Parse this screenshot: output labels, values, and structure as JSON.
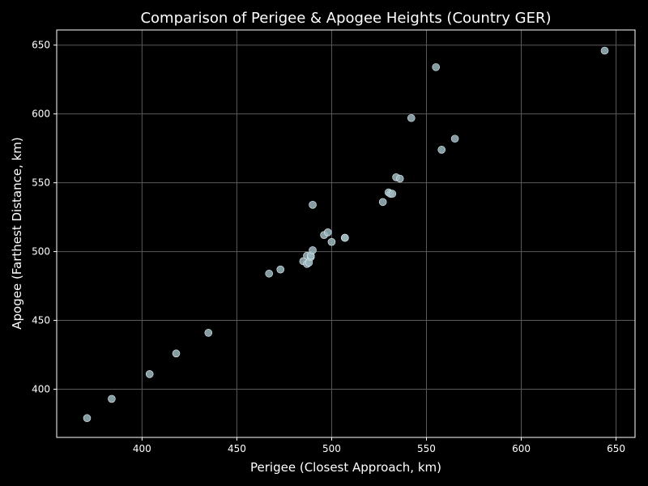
{
  "chart_data": {
    "type": "scatter",
    "title": "Comparison of Perigee & Apogee Heights (Country GER)",
    "xlabel": "Perigee (Closest Approach, km)",
    "ylabel": "Apogee (Farthest Distance, km)",
    "xlim": [
      355,
      660
    ],
    "ylim": [
      365,
      661
    ],
    "x_ticks": [
      400,
      450,
      500,
      550,
      600,
      650
    ],
    "y_ticks": [
      400,
      450,
      500,
      550,
      600,
      650
    ],
    "grid": true,
    "points": [
      {
        "x": 371,
        "y": 379
      },
      {
        "x": 384,
        "y": 393
      },
      {
        "x": 404,
        "y": 411
      },
      {
        "x": 418,
        "y": 426
      },
      {
        "x": 435,
        "y": 441
      },
      {
        "x": 467,
        "y": 484
      },
      {
        "x": 473,
        "y": 487
      },
      {
        "x": 485,
        "y": 493
      },
      {
        "x": 487,
        "y": 491
      },
      {
        "x": 487,
        "y": 497
      },
      {
        "x": 488,
        "y": 492
      },
      {
        "x": 489,
        "y": 496
      },
      {
        "x": 489,
        "y": 497
      },
      {
        "x": 490,
        "y": 501
      },
      {
        "x": 490,
        "y": 534
      },
      {
        "x": 496,
        "y": 512
      },
      {
        "x": 498,
        "y": 514
      },
      {
        "x": 500,
        "y": 507
      },
      {
        "x": 507,
        "y": 510
      },
      {
        "x": 507,
        "y": 510
      },
      {
        "x": 527,
        "y": 536
      },
      {
        "x": 530,
        "y": 543
      },
      {
        "x": 531,
        "y": 542
      },
      {
        "x": 532,
        "y": 542
      },
      {
        "x": 534,
        "y": 554
      },
      {
        "x": 536,
        "y": 553
      },
      {
        "x": 542,
        "y": 597
      },
      {
        "x": 555,
        "y": 634
      },
      {
        "x": 558,
        "y": 574
      },
      {
        "x": 565,
        "y": 582
      },
      {
        "x": 644,
        "y": 646
      }
    ]
  },
  "colors": {
    "background": "#000000",
    "axes": "#ffffff",
    "grid": "#5a5a5a",
    "point_fill": "#9db7c0",
    "point_stroke": "#dfeef3",
    "text": "#ffffff"
  }
}
